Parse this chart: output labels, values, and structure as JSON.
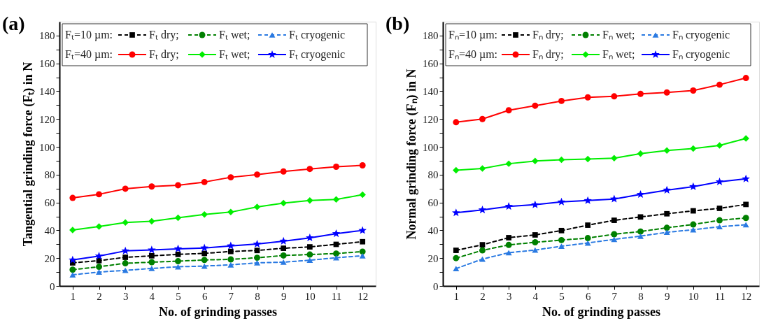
{
  "chart_data": [
    {
      "type": "line",
      "title": "(a)",
      "xlabel": "No. of grinding passes",
      "ylabel": "Tangential grinding force (Fₜ) in N",
      "x": [
        1,
        2,
        3,
        4,
        5,
        6,
        7,
        8,
        9,
        10,
        11,
        12
      ],
      "xlim": [
        0.5,
        12.5
      ],
      "xticks": [
        1,
        2,
        3,
        4,
        5,
        6,
        7,
        8,
        9,
        10,
        11,
        12
      ],
      "ylim": [
        0,
        190
      ],
      "yticks": [
        0,
        {
          "value": 10,
          "label": null
        },
        20,
        {
          "value": 30,
          "label": null
        },
        40,
        {
          "value": 50,
          "label": null
        },
        60,
        {
          "value": 70,
          "label": null
        },
        80,
        {
          "value": 90,
          "label": null
        },
        100,
        {
          "value": 110,
          "label": null
        },
        120,
        {
          "value": 130,
          "label": null
        },
        140,
        {
          "value": 150,
          "label": null
        },
        160,
        {
          "value": 170,
          "label": null
        },
        180
      ],
      "grid": false,
      "legend": "top",
      "annotations": [
        "Fₜ=10 µm:",
        "Fₜ=40 µm:"
      ],
      "series": [
        {
          "name": "Fₜ dry;",
          "color": "#000000",
          "marker": "square",
          "line_style": "dashed",
          "values": [
            16.6,
            18.2,
            20.6,
            21.7,
            22.7,
            23.4,
            24.8,
            25.5,
            27.1,
            28.1,
            29.9,
            31.8
          ]
        },
        {
          "name": "Fₜ wet;",
          "color": "#008000",
          "marker": "circle",
          "line_style": "dashed",
          "values": [
            11.7,
            13.8,
            16.3,
            17.1,
            17.8,
            18.7,
            19.1,
            20.3,
            21.9,
            22.6,
            23.3,
            24.7
          ]
        },
        {
          "name": "Fₜ cryogenic",
          "color": "#2a7ae2",
          "marker": "triangle",
          "line_style": "dashed",
          "values": [
            8,
            10,
            11.2,
            12.6,
            13.8,
            14.3,
            15.2,
            16.6,
            17.1,
            18.5,
            20.3,
            21.7
          ]
        },
        {
          "name": "Fₜ dry;",
          "color": "#ff0000",
          "marker": "circle",
          "line_style": "solid",
          "values": [
            63.3,
            65.9,
            69.9,
            71.5,
            72.4,
            74.7,
            78.1,
            80.1,
            82.3,
            84.1,
            85.7,
            86.7
          ]
        },
        {
          "name": "Fₜ wet;",
          "color": "#00ee00",
          "marker": "diamond",
          "line_style": "solid",
          "values": [
            40.2,
            42.7,
            45.6,
            46.5,
            49.0,
            51.4,
            53.1,
            56.8,
            59.6,
            61.4,
            62.2,
            65.6
          ]
        },
        {
          "name": "Fₜ cryogenic",
          "color": "#0000ff",
          "marker": "star",
          "line_style": "solid",
          "values": [
            18.7,
            21.5,
            25.2,
            25.9,
            26.7,
            27.3,
            28.8,
            30.1,
            32.2,
            34.6,
            37.6,
            39.9
          ]
        }
      ]
    },
    {
      "type": "line",
      "title": "(b)",
      "xlabel": "No. of grinding passes",
      "ylabel": "Normal grinding force (Fₙ) in N",
      "x": [
        1,
        2,
        3,
        4,
        5,
        6,
        7,
        8,
        9,
        10,
        11,
        12
      ],
      "xlim": [
        0.5,
        12.5
      ],
      "xticks": [
        1,
        2,
        3,
        4,
        5,
        6,
        7,
        8,
        9,
        10,
        11,
        12
      ],
      "ylim": [
        0,
        190
      ],
      "yticks": [
        0,
        {
          "value": 10,
          "label": null
        },
        20,
        {
          "value": 30,
          "label": null
        },
        40,
        {
          "value": 50,
          "label": null
        },
        60,
        {
          "value": 70,
          "label": null
        },
        80,
        {
          "value": 90,
          "label": null
        },
        100,
        {
          "value": 110,
          "label": null
        },
        120,
        {
          "value": 130,
          "label": null
        },
        140,
        {
          "value": 150,
          "label": null
        },
        160,
        {
          "value": 170,
          "label": null
        },
        180
      ],
      "grid": false,
      "legend": "top",
      "annotations": [
        "Fₙ=10 µm:",
        "Fₙ=40 µm:"
      ],
      "series": [
        {
          "name": "Fₙ dry;",
          "color": "#000000",
          "marker": "square",
          "line_style": "dashed",
          "values": [
            25.6,
            29.6,
            34.7,
            36.7,
            39.8,
            43.7,
            47.2,
            49.6,
            51.9,
            54,
            55.8,
            58.6
          ]
        },
        {
          "name": "Fₙ wet;",
          "color": "#008000",
          "marker": "circle",
          "line_style": "dashed",
          "values": [
            20,
            25.6,
            29.5,
            31.4,
            33,
            34.4,
            37.2,
            39.1,
            41.8,
            44.2,
            47.2,
            48.9
          ]
        },
        {
          "name": "Fₙ cryogenic",
          "color": "#2a7ae2",
          "marker": "triangle",
          "line_style": "dashed",
          "values": [
            12.5,
            19.3,
            23.9,
            25.8,
            28.6,
            30.9,
            33.5,
            35.8,
            38.6,
            40.4,
            42.6,
            44
          ]
        },
        {
          "name": "Fₙ dry;",
          "color": "#ff0000",
          "marker": "circle",
          "line_style": "solid",
          "values": [
            117.7,
            120,
            126.3,
            129.6,
            133,
            135.6,
            136.3,
            138.1,
            139.1,
            140.5,
            144.7,
            149.5
          ]
        },
        {
          "name": "Fₙ wet;",
          "color": "#00ee00",
          "marker": "diamond",
          "line_style": "solid",
          "values": [
            83.2,
            84.4,
            87.9,
            89.8,
            90.7,
            91.2,
            91.9,
            95.1,
            97.4,
            98.8,
            101,
            106.1
          ]
        },
        {
          "name": "Fₙ cryogenic",
          "color": "#0000ff",
          "marker": "star",
          "line_style": "solid",
          "values": [
            52.6,
            54.7,
            57.2,
            58.4,
            60.4,
            61.4,
            62.5,
            65.8,
            68.9,
            71.4,
            74.9,
            77
          ]
        }
      ]
    }
  ]
}
